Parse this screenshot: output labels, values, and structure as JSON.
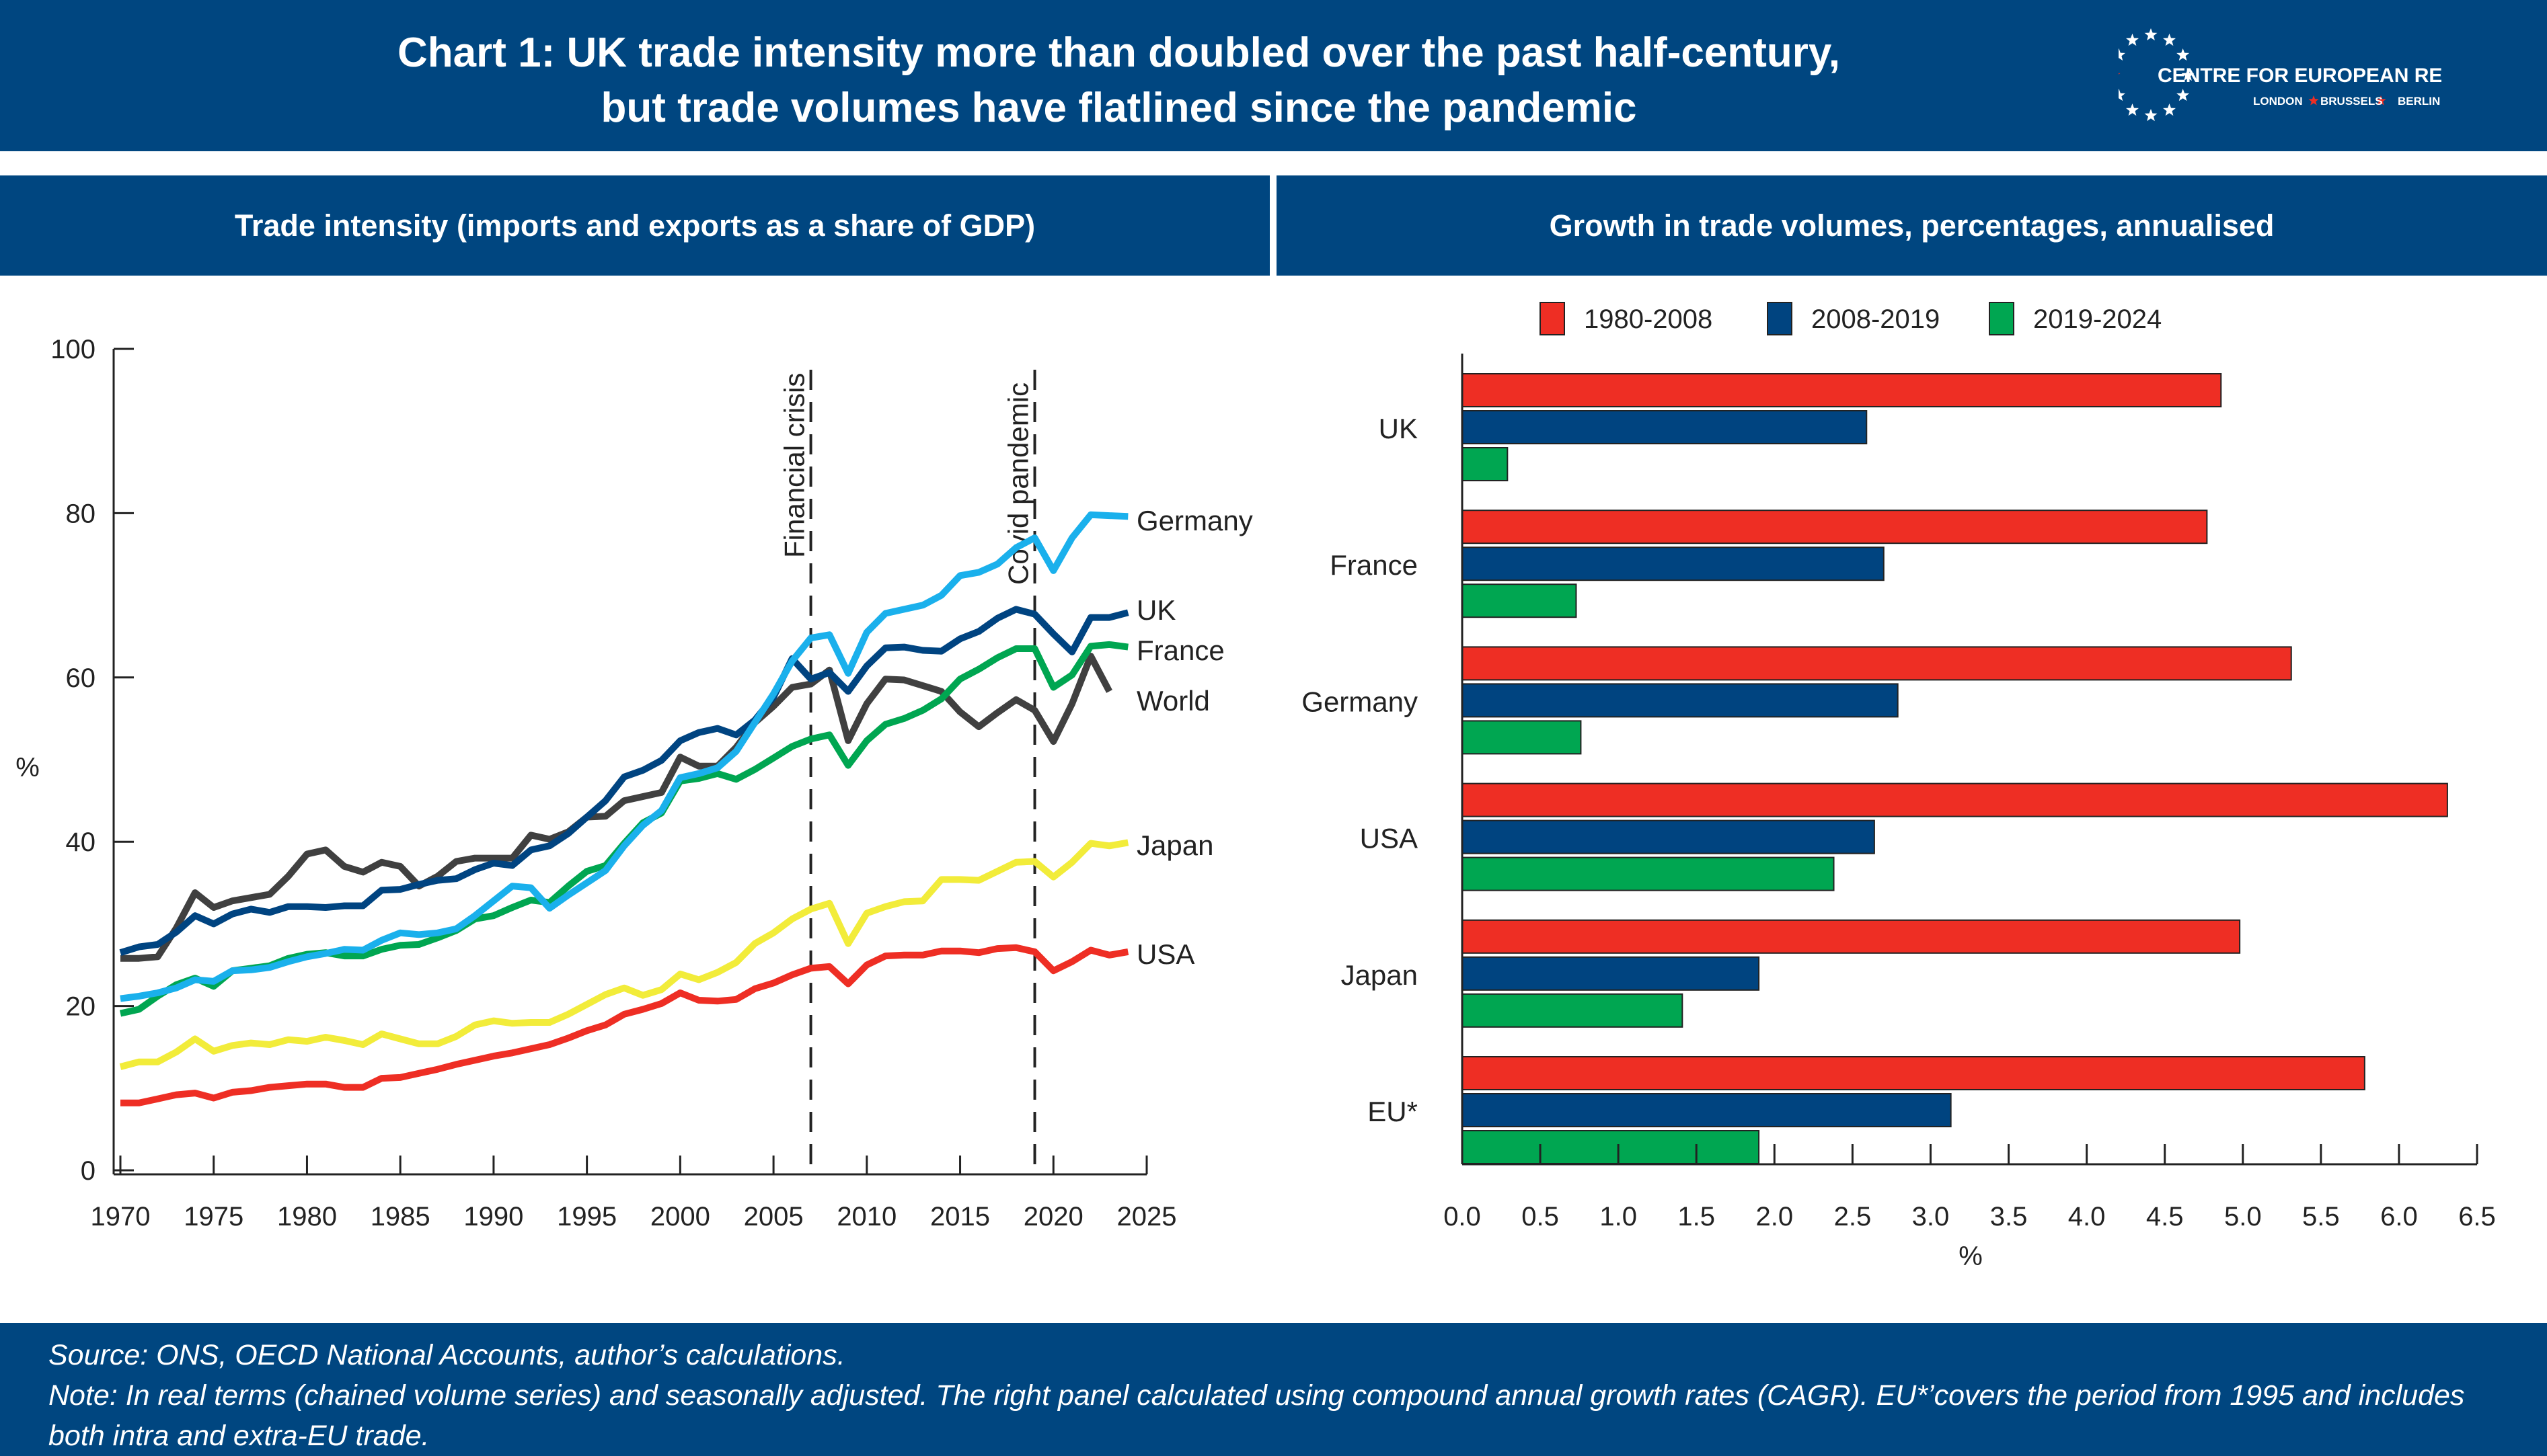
{
  "header": {
    "title_line1": "Chart 1: UK trade intensity more than doubled over the past half-century,",
    "title_line2": "but trade volumes have flatlined since the pandemic",
    "logo_name": "CENTRE FOR EUROPEAN REFORM",
    "logo_cities": [
      "LONDON",
      "BRUSSELS",
      "BERLIN"
    ]
  },
  "colors": {
    "brand": "#004680",
    "red": "#ee2e24",
    "navy": "#004481",
    "lightblue": "#1ab0ec",
    "green": "#00a651",
    "gray": "#404040",
    "yellow": "#f2ec3a"
  },
  "footer": {
    "source": "Source: ONS, OECD National Accounts, author’s calculations.",
    "note_line1": "Note: In real terms (chained volume series) and seasonally adjusted. The right panel calculated using compound annual growth rates (CAGR). EU*’covers the period from 1995 and includes",
    "note_line2": " both intra and extra-EU trade."
  },
  "chart_data": [
    {
      "type": "line",
      "title": "Trade intensity (imports and exports as a share of GDP)",
      "ylabel": "%",
      "xlabel": "",
      "ylim": [
        0,
        100
      ],
      "xlim": [
        1970,
        2025
      ],
      "yticks": [
        0,
        20,
        40,
        60,
        80,
        100
      ],
      "xticks": [
        1970,
        1975,
        1980,
        1985,
        1990,
        1995,
        2000,
        2005,
        2010,
        2015,
        2020,
        2025
      ],
      "x_start": 1970,
      "annotations": [
        {
          "x": 2007,
          "label": "Financial crisis"
        },
        {
          "x": 2019,
          "label": "Covid pandemic"
        }
      ],
      "series": [
        {
          "name": "Germany",
          "color": "#1ab0ec",
          "values": [
            20.9,
            21.2,
            21.6,
            22.2,
            23.2,
            23.0,
            24.3,
            24.4,
            24.7,
            25.4,
            26.0,
            26.4,
            26.9,
            26.8,
            28.0,
            28.9,
            28.7,
            28.9,
            29.4,
            31.0,
            32.8,
            34.6,
            34.4,
            31.9,
            33.5,
            35.0,
            36.5,
            39.5,
            42.0,
            43.8,
            47.8,
            48.3,
            49.0,
            51.0,
            54.5,
            58.0,
            62.0,
            64.8,
            65.2,
            60.5,
            65.5,
            67.8,
            68.3,
            68.8,
            70.0,
            72.4,
            72.8,
            73.8,
            75.8,
            77.0,
            73.0,
            77.0,
            79.8,
            79.7,
            79.6
          ]
        },
        {
          "name": "UK",
          "color": "#004481",
          "values": [
            26.5,
            27.2,
            27.5,
            29.0,
            31.0,
            30.0,
            31.2,
            31.8,
            31.4,
            32.1,
            32.1,
            32.0,
            32.2,
            32.2,
            34.1,
            34.2,
            34.8,
            35.3,
            35.5,
            36.6,
            37.4,
            37.1,
            39.0,
            39.5,
            41.0,
            43.0,
            45.0,
            47.9,
            48.7,
            49.9,
            52.3,
            53.3,
            53.8,
            53.0,
            54.8,
            57.6,
            62.3,
            59.8,
            60.6,
            58.3,
            61.4,
            63.6,
            63.7,
            63.3,
            63.2,
            64.7,
            65.6,
            67.2,
            68.3,
            67.7,
            65.3,
            63.1,
            67.3,
            67.3,
            67.9
          ]
        },
        {
          "name": "France",
          "color": "#00a651",
          "values": [
            19.1,
            19.6,
            21.2,
            22.6,
            23.4,
            22.4,
            24.3,
            24.6,
            24.9,
            25.8,
            26.3,
            26.5,
            26.1,
            26.1,
            26.9,
            27.4,
            27.5,
            28.3,
            29.2,
            30.6,
            31.0,
            32.0,
            32.9,
            32.6,
            34.6,
            36.4,
            37.1,
            39.8,
            42.3,
            43.5,
            47.4,
            47.7,
            48.3,
            47.6,
            48.8,
            50.2,
            51.6,
            52.5,
            53.0,
            49.3,
            52.3,
            54.3,
            55.0,
            56.0,
            57.4,
            59.8,
            61.0,
            62.4,
            63.5,
            63.5,
            58.8,
            60.3,
            63.8,
            64.0,
            63.7
          ]
        },
        {
          "name": "World",
          "color": "#404040",
          "values": [
            25.8,
            25.8,
            26.0,
            29.5,
            33.8,
            32.0,
            32.8,
            33.2,
            33.6,
            35.8,
            38.5,
            39.0,
            37.0,
            36.3,
            37.5,
            37.0,
            34.6,
            35.8,
            37.6,
            38.0,
            38.0,
            38.0,
            40.8,
            40.3,
            41.2,
            43.0,
            43.1,
            45.0,
            45.5,
            46.0,
            50.3,
            49.2,
            49.2,
            51.5,
            54.5,
            56.5,
            58.8,
            59.2,
            60.9,
            52.3,
            56.8,
            59.8,
            59.7,
            59.0,
            58.3,
            55.8,
            54.0,
            55.7,
            57.3,
            56.0,
            52.2,
            56.8,
            62.6,
            58.3
          ]
        },
        {
          "name": "Japan",
          "color": "#f2ec3a",
          "values": [
            12.6,
            13.2,
            13.2,
            14.4,
            16.0,
            14.5,
            15.2,
            15.5,
            15.3,
            15.9,
            15.7,
            16.2,
            15.8,
            15.3,
            16.6,
            16.0,
            15.4,
            15.4,
            16.3,
            17.7,
            18.2,
            17.9,
            18.0,
            18.0,
            19.0,
            20.2,
            21.4,
            22.2,
            21.3,
            22.0,
            23.9,
            23.2,
            24.1,
            25.3,
            27.6,
            28.9,
            30.6,
            31.8,
            32.5,
            27.6,
            31.3,
            32.1,
            32.7,
            32.8,
            35.4,
            35.4,
            35.3,
            36.4,
            37.5,
            37.6,
            35.7,
            37.5,
            39.8,
            39.5,
            39.9
          ]
        },
        {
          "name": "USA",
          "color": "#ee2e24",
          "values": [
            8.2,
            8.2,
            8.7,
            9.2,
            9.4,
            8.8,
            9.5,
            9.7,
            10.1,
            10.3,
            10.5,
            10.5,
            10.1,
            10.1,
            11.2,
            11.3,
            11.8,
            12.3,
            12.9,
            13.4,
            13.9,
            14.3,
            14.8,
            15.3,
            16.1,
            17.0,
            17.7,
            19.0,
            19.6,
            20.3,
            21.6,
            20.7,
            20.6,
            20.8,
            22.1,
            22.8,
            23.8,
            24.6,
            24.8,
            22.7,
            25.0,
            26.1,
            26.2,
            26.2,
            26.7,
            26.7,
            26.5,
            27.0,
            27.1,
            26.6,
            24.3,
            25.4,
            26.8,
            26.2,
            26.6
          ]
        }
      ]
    },
    {
      "type": "bar",
      "orientation": "horizontal",
      "title": "Growth in trade volumes, percentages, annualised",
      "xlabel": "%",
      "xlim": [
        0,
        6.5
      ],
      "xticks": [
        "0.0",
        "0.5",
        "1.0",
        "1.5",
        "2.0",
        "2.5",
        "3.0",
        "3.5",
        "4.0",
        "4.5",
        "5.0",
        "5.5",
        "6.0",
        "6.5"
      ],
      "legend_position": "top",
      "categories": [
        "UK",
        "France",
        "Germany",
        "USA",
        "Japan",
        "EU*"
      ],
      "series": [
        {
          "name": "1980-2008",
          "color": "#ee2e24",
          "values": [
            4.86,
            4.77,
            5.31,
            6.31,
            4.98,
            5.78
          ]
        },
        {
          "name": "2008-2019",
          "color": "#004480",
          "values": [
            2.59,
            2.7,
            2.79,
            2.64,
            1.9,
            3.13
          ]
        },
        {
          "name": "2019-2024",
          "color": "#00a651",
          "values": [
            0.29,
            0.73,
            0.76,
            2.38,
            1.41,
            1.9
          ]
        }
      ]
    }
  ]
}
